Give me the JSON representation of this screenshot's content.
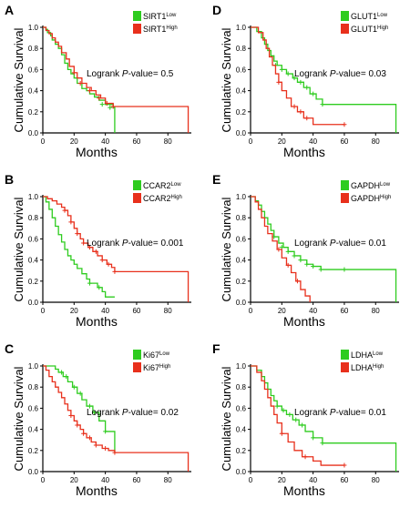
{
  "figure": {
    "y_axis_label": "Cumulative Survival",
    "x_axis_label": "Months",
    "x_ticks": [
      "0",
      "20",
      "40",
      "60",
      "80"
    ],
    "y_ticks": [
      "0.0",
      "0.2",
      "0.4",
      "0.6",
      "0.8",
      "1.0"
    ],
    "low_color": "#2ecc1f",
    "high_color": "#e8301c"
  },
  "chart_data": [
    {
      "panel": "A",
      "type": "line",
      "gene": "SIRT1",
      "xlabel": "Months",
      "ylabel": "Cumulative Survival",
      "xlim": [
        0,
        95
      ],
      "ylim": [
        0,
        1
      ],
      "annotation": {
        "prefix": "Logrank ",
        "italic": "P",
        "suffix": "-value= 0.5"
      },
      "series": [
        {
          "name": "SIRT1",
          "sup": "Low",
          "color": "#2ecc1f",
          "x": [
            0,
            2,
            3,
            5,
            6,
            8,
            10,
            12,
            14,
            16,
            18,
            20,
            22,
            25,
            28,
            30,
            33,
            36,
            40,
            45,
            46
          ],
          "y": [
            1.0,
            0.98,
            0.95,
            0.92,
            0.88,
            0.84,
            0.8,
            0.74,
            0.66,
            0.6,
            0.56,
            0.52,
            0.47,
            0.42,
            0.4,
            0.37,
            0.34,
            0.31,
            0.27,
            0.24,
            0.0
          ],
          "censors": [
            [
              38,
              0.27
            ],
            [
              43,
              0.24
            ]
          ]
        },
        {
          "name": "SIRT1",
          "sup": "High",
          "color": "#e8301c",
          "x": [
            0,
            2,
            4,
            6,
            8,
            10,
            12,
            15,
            17,
            20,
            22,
            25,
            28,
            31,
            34,
            37,
            40,
            45,
            93
          ],
          "y": [
            1.0,
            0.97,
            0.94,
            0.9,
            0.86,
            0.82,
            0.76,
            0.7,
            0.63,
            0.57,
            0.52,
            0.47,
            0.43,
            0.4,
            0.36,
            0.33,
            0.28,
            0.25,
            0.0
          ],
          "censors": [
            [
              20,
              0.57
            ],
            [
              24,
              0.47
            ],
            [
              30,
              0.4
            ],
            [
              36,
              0.33
            ],
            [
              41,
              0.28
            ],
            [
              45,
              0.25
            ]
          ]
        }
      ]
    },
    {
      "panel": "B",
      "type": "line",
      "gene": "CCAR2",
      "xlabel": "Months",
      "ylabel": "Cumulative Survival",
      "xlim": [
        0,
        95
      ],
      "ylim": [
        0,
        1
      ],
      "annotation": {
        "prefix": "Logrank ",
        "italic": "P",
        "suffix": "-value= 0.001"
      },
      "series": [
        {
          "name": "CCAR2",
          "sup": "Low",
          "color": "#2ecc1f",
          "x": [
            0,
            2,
            4,
            6,
            8,
            10,
            12,
            14,
            16,
            18,
            20,
            22,
            25,
            28,
            30,
            35,
            38,
            40,
            46
          ],
          "y": [
            1.0,
            0.95,
            0.88,
            0.8,
            0.72,
            0.64,
            0.57,
            0.5,
            0.44,
            0.4,
            0.36,
            0.32,
            0.27,
            0.22,
            0.18,
            0.14,
            0.1,
            0.05,
            0.05
          ],
          "censors": [
            [
              30,
              0.18
            ],
            [
              36,
              0.14
            ]
          ]
        },
        {
          "name": "CCAR2",
          "sup": "High",
          "color": "#e8301c",
          "x": [
            0,
            3,
            6,
            9,
            12,
            14,
            16,
            18,
            20,
            22,
            24,
            26,
            29,
            32,
            35,
            38,
            41,
            44,
            46,
            93
          ],
          "y": [
            1.0,
            0.98,
            0.96,
            0.93,
            0.9,
            0.87,
            0.82,
            0.76,
            0.7,
            0.65,
            0.6,
            0.56,
            0.52,
            0.48,
            0.44,
            0.4,
            0.36,
            0.33,
            0.29,
            0.0
          ],
          "censors": [
            [
              14,
              0.87
            ],
            [
              18,
              0.76
            ],
            [
              22,
              0.65
            ],
            [
              26,
              0.56
            ],
            [
              30,
              0.52
            ],
            [
              34,
              0.48
            ],
            [
              38,
              0.4
            ],
            [
              42,
              0.36
            ],
            [
              46,
              0.29
            ]
          ]
        }
      ]
    },
    {
      "panel": "C",
      "type": "line",
      "gene": "Ki67",
      "xlabel": "Months",
      "ylabel": "Cumulative Survival",
      "xlim": [
        0,
        95
      ],
      "ylim": [
        0,
        1
      ],
      "annotation": {
        "prefix": "Logrank ",
        "italic": "P",
        "suffix": "-value= 0.02"
      },
      "series": [
        {
          "name": "Ki67",
          "sup": "Low",
          "color": "#2ecc1f",
          "x": [
            0,
            8,
            10,
            13,
            16,
            19,
            22,
            25,
            28,
            32,
            36,
            40,
            46
          ],
          "y": [
            1.0,
            0.97,
            0.94,
            0.9,
            0.85,
            0.8,
            0.74,
            0.68,
            0.62,
            0.56,
            0.48,
            0.38,
            0.18
          ],
          "censors": [
            [
              12,
              0.94
            ],
            [
              15,
              0.9
            ],
            [
              20,
              0.8
            ],
            [
              24,
              0.74
            ],
            [
              30,
              0.62
            ],
            [
              33,
              0.56
            ],
            [
              40,
              0.38
            ]
          ]
        },
        {
          "name": "Ki67",
          "sup": "High",
          "color": "#e8301c",
          "x": [
            0,
            2,
            4,
            6,
            8,
            10,
            12,
            14,
            16,
            18,
            20,
            22,
            24,
            26,
            28,
            31,
            34,
            38,
            42,
            46,
            93
          ],
          "y": [
            1.0,
            0.96,
            0.9,
            0.85,
            0.8,
            0.75,
            0.7,
            0.64,
            0.58,
            0.53,
            0.48,
            0.44,
            0.4,
            0.36,
            0.32,
            0.28,
            0.25,
            0.22,
            0.2,
            0.18,
            0.0
          ],
          "censors": [
            [
              18,
              0.53
            ],
            [
              22,
              0.44
            ],
            [
              26,
              0.36
            ],
            [
              30,
              0.32
            ],
            [
              34,
              0.25
            ],
            [
              40,
              0.22
            ],
            [
              46,
              0.18
            ]
          ]
        }
      ]
    },
    {
      "panel": "D",
      "type": "line",
      "gene": "GLUT1",
      "xlabel": "Months",
      "ylabel": "Cumulative Survival",
      "xlim": [
        0,
        95
      ],
      "ylim": [
        0,
        1
      ],
      "annotation": {
        "prefix": "Logrank ",
        "italic": "P",
        "suffix": "-value= 0.03"
      },
      "series": [
        {
          "name": "GLUT1",
          "sup": "Low",
          "color": "#2ecc1f",
          "x": [
            0,
            4,
            7,
            9,
            11,
            13,
            15,
            17,
            20,
            23,
            27,
            30,
            34,
            38,
            42,
            46,
            93
          ],
          "y": [
            1.0,
            0.96,
            0.9,
            0.84,
            0.78,
            0.73,
            0.68,
            0.64,
            0.6,
            0.56,
            0.52,
            0.48,
            0.43,
            0.37,
            0.32,
            0.27,
            0.0
          ],
          "censors": [
            [
              16,
              0.64
            ],
            [
              20,
              0.6
            ],
            [
              24,
              0.56
            ],
            [
              28,
              0.52
            ],
            [
              32,
              0.48
            ],
            [
              36,
              0.43
            ],
            [
              40,
              0.37
            ],
            [
              46,
              0.27
            ]
          ]
        },
        {
          "name": "GLUT1",
          "sup": "High",
          "color": "#e8301c",
          "x": [
            0,
            5,
            8,
            10,
            12,
            14,
            16,
            18,
            20,
            23,
            26,
            30,
            34,
            40,
            60
          ],
          "y": [
            1.0,
            0.95,
            0.88,
            0.8,
            0.72,
            0.64,
            0.56,
            0.48,
            0.4,
            0.33,
            0.25,
            0.2,
            0.14,
            0.08,
            0.08
          ],
          "censors": [
            [
              18,
              0.48
            ],
            [
              28,
              0.25
            ],
            [
              32,
              0.2
            ],
            [
              36,
              0.14
            ],
            [
              60,
              0.08
            ]
          ]
        }
      ]
    },
    {
      "panel": "E",
      "type": "line",
      "gene": "GAPDH",
      "xlabel": "Months",
      "ylabel": "Cumulative Survival",
      "xlim": [
        0,
        95
      ],
      "ylim": [
        0,
        1
      ],
      "annotation": {
        "prefix": "Logrank ",
        "italic": "P",
        "suffix": "-value= 0.01"
      },
      "series": [
        {
          "name": "GAPDH",
          "sup": "Low",
          "color": "#2ecc1f",
          "x": [
            0,
            3,
            5,
            7,
            9,
            11,
            13,
            15,
            18,
            21,
            24,
            28,
            32,
            36,
            40,
            45,
            93
          ],
          "y": [
            1.0,
            0.96,
            0.92,
            0.86,
            0.8,
            0.74,
            0.68,
            0.62,
            0.56,
            0.52,
            0.48,
            0.44,
            0.4,
            0.36,
            0.34,
            0.31,
            0.0
          ],
          "censors": [
            [
              15,
              0.62
            ],
            [
              20,
              0.52
            ],
            [
              24,
              0.48
            ],
            [
              28,
              0.44
            ],
            [
              32,
              0.4
            ],
            [
              36,
              0.36
            ],
            [
              40,
              0.34
            ],
            [
              45,
              0.31
            ],
            [
              60,
              0.31
            ]
          ]
        },
        {
          "name": "GAPDH",
          "sup": "High",
          "color": "#e8301c",
          "x": [
            0,
            3,
            5,
            7,
            9,
            11,
            14,
            17,
            20,
            23,
            26,
            29,
            32,
            35,
            38
          ],
          "y": [
            1.0,
            0.95,
            0.88,
            0.8,
            0.72,
            0.65,
            0.58,
            0.5,
            0.42,
            0.35,
            0.28,
            0.2,
            0.12,
            0.06,
            0.0
          ],
          "censors": [
            [
              18,
              0.5
            ],
            [
              24,
              0.35
            ],
            [
              30,
              0.2
            ]
          ]
        }
      ]
    },
    {
      "panel": "F",
      "type": "line",
      "gene": "LDHA",
      "xlabel": "Months",
      "ylabel": "Cumulative Survival",
      "xlim": [
        0,
        95
      ],
      "ylim": [
        0,
        1
      ],
      "annotation": {
        "prefix": "Logrank ",
        "italic": "P",
        "suffix": "-value= 0.01"
      },
      "series": [
        {
          "name": "LDHA",
          "sup": "Low",
          "color": "#2ecc1f",
          "x": [
            0,
            4,
            7,
            9,
            11,
            13,
            15,
            17,
            20,
            23,
            27,
            31,
            35,
            40,
            46,
            93
          ],
          "y": [
            1.0,
            0.96,
            0.9,
            0.84,
            0.78,
            0.72,
            0.67,
            0.62,
            0.58,
            0.54,
            0.49,
            0.44,
            0.38,
            0.32,
            0.27,
            0.0
          ],
          "censors": [
            [
              17,
              0.62
            ],
            [
              21,
              0.58
            ],
            [
              25,
              0.54
            ],
            [
              29,
              0.49
            ],
            [
              33,
              0.44
            ],
            [
              40,
              0.32
            ],
            [
              46,
              0.27
            ]
          ]
        },
        {
          "name": "LDHA",
          "sup": "High",
          "color": "#e8301c",
          "x": [
            0,
            4,
            7,
            9,
            11,
            13,
            15,
            17,
            20,
            24,
            28,
            33,
            40,
            45,
            60
          ],
          "y": [
            1.0,
            0.94,
            0.86,
            0.78,
            0.7,
            0.62,
            0.54,
            0.46,
            0.36,
            0.28,
            0.2,
            0.14,
            0.1,
            0.06,
            0.06
          ],
          "censors": [
            [
              20,
              0.36
            ],
            [
              35,
              0.14
            ],
            [
              60,
              0.06
            ]
          ]
        }
      ]
    }
  ]
}
